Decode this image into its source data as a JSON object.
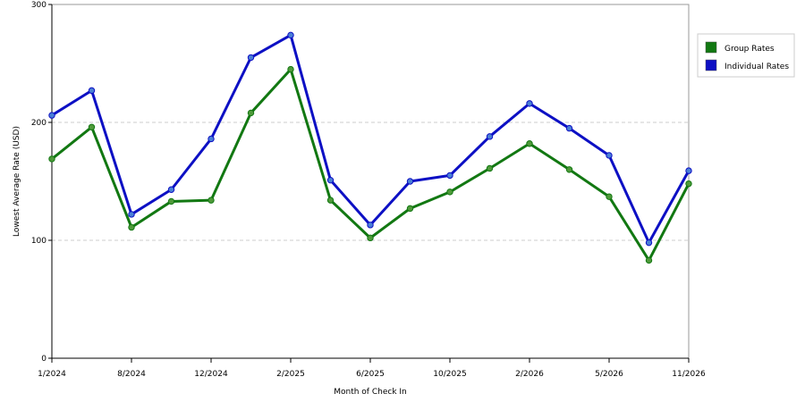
{
  "chart_data": {
    "type": "line",
    "title": "",
    "xlabel": "Month of Check In",
    "ylabel": "Lowest Average Rate (USD)",
    "ylim": [
      0,
      300
    ],
    "yticks": [
      "0",
      "100",
      "200",
      "300"
    ],
    "x_tick_labels": [
      {
        "label": "1/2024",
        "index": 0
      },
      {
        "label": "8/2024",
        "index": 2
      },
      {
        "label": "12/2024",
        "index": 4
      },
      {
        "label": "2/2025",
        "index": 6
      },
      {
        "label": "6/2025",
        "index": 8
      },
      {
        "label": "10/2025",
        "index": 10
      },
      {
        "label": "2/2026",
        "index": 12
      },
      {
        "label": "5/2026",
        "index": 14
      },
      {
        "label": "11/2026",
        "index": 16
      }
    ],
    "point_count": 17,
    "grid": true,
    "legend_position": "top-right",
    "series": [
      {
        "name": "Group Rates",
        "color": "#127812",
        "marker_color": "#4f9a3a",
        "values": [
          169,
          196,
          111,
          133,
          134,
          208,
          245,
          134,
          102,
          127,
          141,
          161,
          182,
          160,
          137,
          83,
          148
        ]
      },
      {
        "name": "Individual Rates",
        "color": "#0d10c4",
        "marker_color": "#4a7fd6",
        "values": [
          206,
          227,
          122,
          143,
          186,
          255,
          274,
          151,
          113,
          150,
          155,
          188,
          216,
          195,
          172,
          98,
          159
        ]
      }
    ]
  }
}
